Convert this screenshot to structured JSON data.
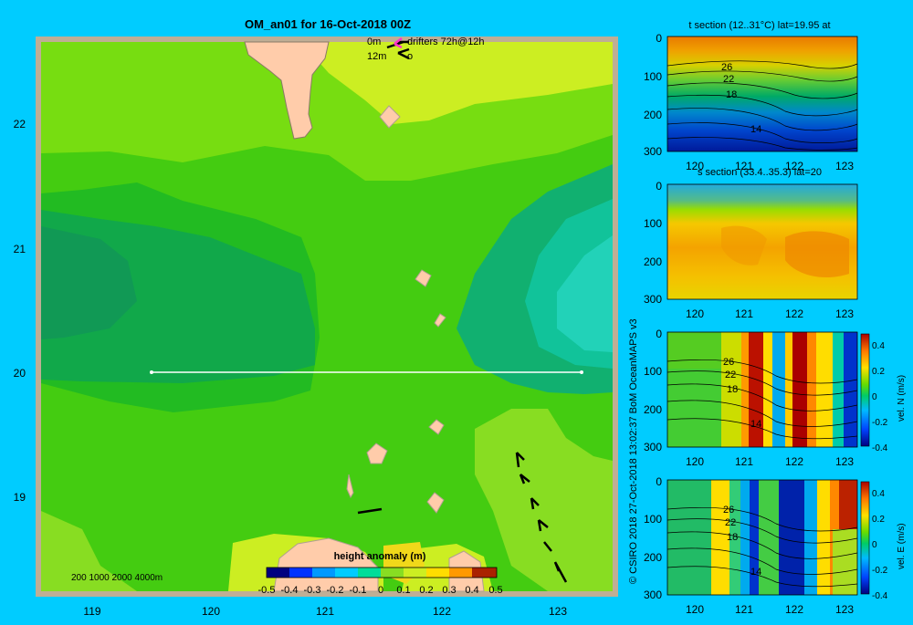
{
  "main_map": {
    "title": "OM_an01 for 16-Oct-2018 00Z",
    "legend_0m": "0m",
    "legend_12m": "12m",
    "legend_drifters": "drifters 72h@12h",
    "legend_12m_tag": "o",
    "x_ticks": [
      "119",
      "120",
      "121",
      "122",
      "123"
    ],
    "y_ticks": [
      "22",
      "21",
      "20",
      "19"
    ],
    "depth_legend": "200  1000  2000  4000m",
    "colorbar_title": "height anomaly (m)",
    "colorbar_ticks": [
      "-0.5",
      "-0.4",
      "-0.3",
      "-0.2",
      "-0.1",
      "0",
      "0.1",
      "0.2",
      "0.3",
      "0.4",
      "0.5"
    ],
    "section_line_lat": 20,
    "section_line_lon": [
      119.5,
      123.2
    ]
  },
  "side_panels": {
    "credit": "© CSIRO 2018   27-Oct-2018 13:02:37 BoM OceanMAPS v3",
    "t_section": {
      "title": "t section (12..31°C) lat=19.95 at",
      "y_ticks": [
        "0",
        "100",
        "200",
        "300"
      ],
      "x_ticks": [
        "120",
        "121",
        "122",
        "123"
      ],
      "contour_labels": [
        "26",
        "22",
        "18",
        "14"
      ]
    },
    "s_section": {
      "title": "s section (33.4..35.3) lat=20",
      "y_ticks": [
        "0",
        "100",
        "200",
        "300"
      ],
      "x_ticks": [
        "120",
        "121",
        "122",
        "123"
      ]
    },
    "n_section": {
      "y_ticks": [
        "0",
        "100",
        "200",
        "300"
      ],
      "x_ticks": [
        "120",
        "121",
        "122",
        "123"
      ],
      "contour_labels": [
        "26",
        "22",
        "18",
        "14"
      ],
      "cb_ticks": [
        "0.4",
        "0.2",
        "0",
        "-0.2",
        "-0.4"
      ],
      "cb_label": "vel. N (m/s)"
    },
    "e_section": {
      "y_ticks": [
        "0",
        "100",
        "200",
        "300"
      ],
      "x_ticks": [
        "120",
        "121",
        "122",
        "123"
      ],
      "contour_labels": [
        "26",
        "22",
        "18",
        "14"
      ],
      "cb_ticks": [
        "0.4",
        "0.2",
        "0",
        "-0.2",
        "-0.4"
      ],
      "cb_label": "vel. E (m/s)"
    }
  }
}
